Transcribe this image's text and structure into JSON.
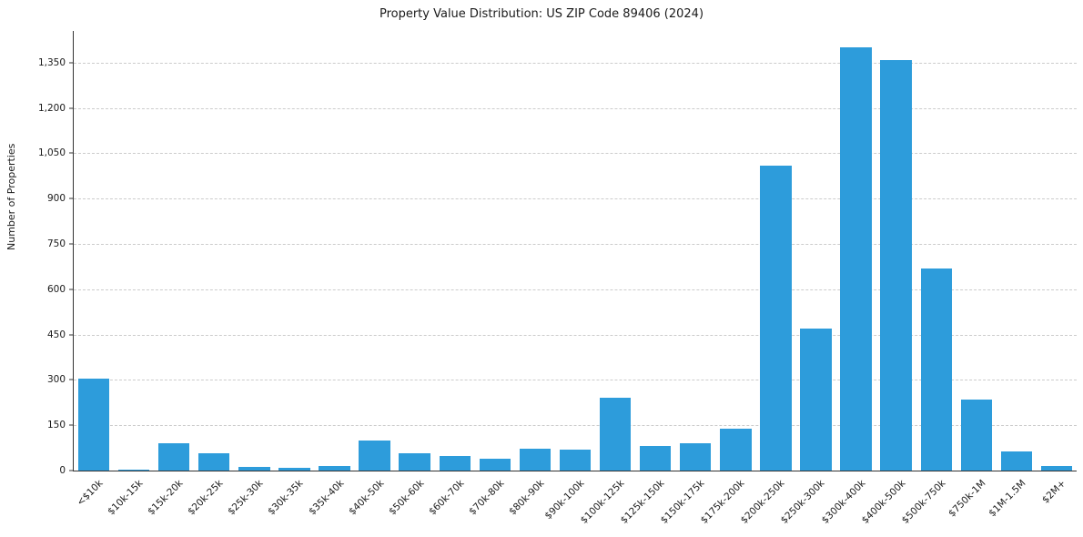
{
  "chart_data": {
    "type": "bar",
    "title": "Property Value Distribution: US ZIP Code 89406 (2024)",
    "xlabel": "",
    "ylabel": "Number of Properties",
    "bar_color": "#2D9CDB",
    "grid": true,
    "legend": "none",
    "ylim": [
      0,
      1455
    ],
    "y_ticks": [
      0,
      150,
      300,
      450,
      600,
      750,
      900,
      1050,
      1200,
      1350
    ],
    "categories": [
      "<$10k",
      "$10k-15k",
      "$15k-20k",
      "$20k-25k",
      "$25k-30k",
      "$30k-35k",
      "$35k-40k",
      "$40k-50k",
      "$50k-60k",
      "$60k-70k",
      "$70k-80k",
      "$80k-90k",
      "$90k-100k",
      "$100k-125k",
      "$125k-150k",
      "$150k-175k",
      "$175k-200k",
      "$200k-250k",
      "$250k-300k",
      "$300k-400k",
      "$400k-500k",
      "$500k-750k",
      "$750k-1M",
      "$1M-1.5M",
      "$2M+"
    ],
    "values": [
      305,
      4,
      90,
      58,
      12,
      8,
      15,
      100,
      58,
      48,
      38,
      72,
      70,
      242,
      80,
      90,
      140,
      1010,
      470,
      1400,
      1360,
      670,
      235,
      62,
      15
    ]
  }
}
